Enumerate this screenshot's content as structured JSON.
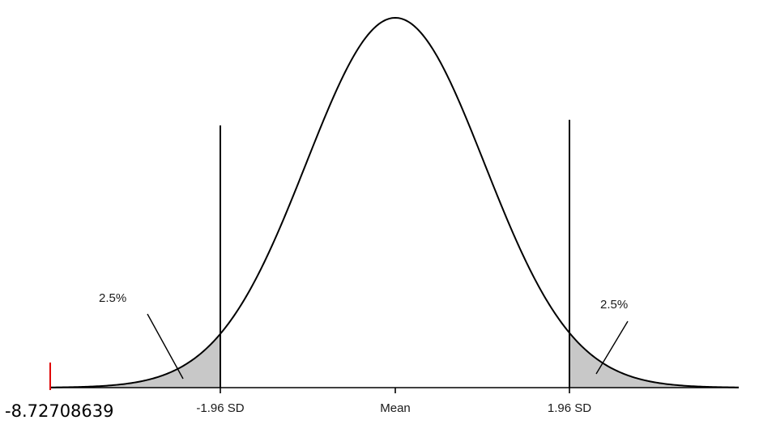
{
  "diagram": {
    "distribution": "normal",
    "critical_z": 1.96,
    "tail_area_each": "2.5%",
    "tick_labels": {
      "left": "-1.96 SD",
      "center": "Mean",
      "right": "1.96 SD"
    },
    "tail_labels": {
      "left": "2.5%",
      "right": "2.5%"
    },
    "shading_color": "#c8c8c8",
    "marker_color": "#e00000"
  },
  "corner_value": "-8.72708639"
}
